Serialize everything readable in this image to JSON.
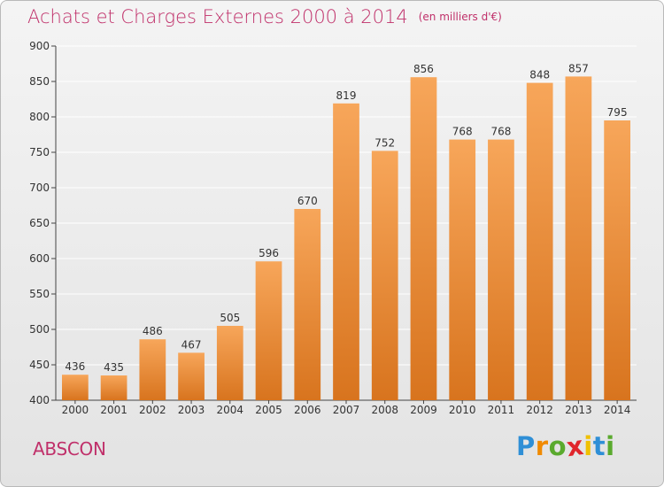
{
  "title": "Achats et Charges Externes 2000 à 2014",
  "unit": "(en milliers d'€)",
  "commune": "ABSCON",
  "logo": {
    "letters": [
      "P",
      "r",
      "o",
      "x",
      "i",
      "t",
      "i"
    ],
    "colors": [
      "#2f8fd6",
      "#f08a00",
      "#5aaa2e",
      "#e0252b",
      "#f0c000",
      "#2f8fd6",
      "#5aaa2e"
    ]
  },
  "colors": {
    "bar_light": "#f7a65a",
    "bar_dark": "#d8741e",
    "title": "#c0306a",
    "grid": "#ffffff",
    "axis": "#444444"
  },
  "chart_data": {
    "type": "bar",
    "categories": [
      "2000",
      "2001",
      "2002",
      "2003",
      "2004",
      "2005",
      "2006",
      "2007",
      "2008",
      "2009",
      "2010",
      "2011",
      "2012",
      "2013",
      "2014"
    ],
    "values": [
      436,
      435,
      486,
      467,
      505,
      596,
      670,
      819,
      752,
      856,
      768,
      768,
      848,
      857,
      795
    ],
    "value_labels": [
      "436",
      "435",
      "486",
      "467",
      "505",
      "596",
      "670",
      "819",
      "752",
      "856",
      "768",
      "768",
      "848",
      "857",
      "795"
    ],
    "yticks": [
      "400",
      "450",
      "500",
      "550",
      "600",
      "650",
      "700",
      "750",
      "800",
      "850",
      "900"
    ],
    "ylim": [
      400,
      900
    ],
    "grid": true
  }
}
